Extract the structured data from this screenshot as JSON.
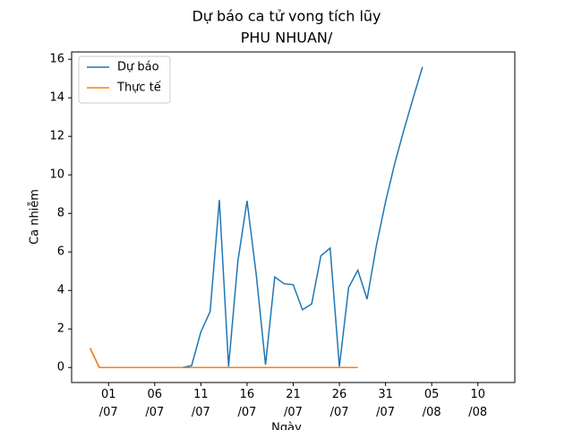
{
  "chart_data": {
    "type": "line",
    "title": "Dự báo ca tử vong tích lũy",
    "subtitle": "PHU NHUAN/",
    "x_label": "Ngày",
    "y_label": "Ca nhiễm",
    "x": [
      "29/06",
      "30/06",
      "01/07",
      "02/07",
      "03/07",
      "04/07",
      "05/07",
      "06/07",
      "07/07",
      "08/07",
      "09/07",
      "10/07",
      "11/07",
      "12/07",
      "13/07",
      "14/07",
      "15/07",
      "16/07",
      "17/07",
      "18/07",
      "19/07",
      "20/07",
      "21/07",
      "22/07",
      "23/07",
      "24/07",
      "25/07",
      "26/07",
      "27/07",
      "28/07",
      "29/07",
      "30/07",
      "31/07",
      "01/08",
      "02/08",
      "03/08",
      "04/08"
    ],
    "series": [
      {
        "name": "Dự báo",
        "color": "#1f77b4",
        "values": [
          1.0,
          0,
          0,
          0,
          0,
          0,
          0,
          0,
          0,
          0,
          0,
          0.1,
          1.85,
          2.9,
          8.7,
          0.05,
          5.5,
          8.65,
          4.8,
          0.15,
          4.7,
          4.35,
          4.3,
          3.0,
          3.3,
          5.8,
          6.2,
          0.05,
          4.15,
          5.05,
          3.55,
          6.3,
          8.6,
          10.6,
          12.35,
          14.0,
          15.6
        ]
      },
      {
        "name": "Thực tế",
        "color": "#ff7f0e",
        "values": [
          1.0,
          0,
          0,
          0,
          0,
          0,
          0,
          0,
          0,
          0,
          0,
          0,
          0,
          0,
          0,
          0,
          0,
          0,
          0,
          0,
          0,
          0,
          0,
          0,
          0,
          0,
          0,
          0,
          0,
          0,
          null,
          null,
          null,
          null,
          null,
          null,
          null
        ]
      }
    ],
    "xlim": [
      "27/06",
      "14/08"
    ],
    "xticks": [
      {
        "value": "01/07",
        "label": "01\n/07"
      },
      {
        "value": "06/07",
        "label": "06\n/07"
      },
      {
        "value": "11/07",
        "label": "11\n/07"
      },
      {
        "value": "16/07",
        "label": "16\n/07"
      },
      {
        "value": "21/07",
        "label": "21\n/07"
      },
      {
        "value": "26/07",
        "label": "26\n/07"
      },
      {
        "value": "31/07",
        "label": "31\n/07"
      },
      {
        "value": "05/08",
        "label": "05\n/08"
      },
      {
        "value": "10/08",
        "label": "10\n/08"
      }
    ],
    "ylim": [
      -0.78,
      16.38
    ],
    "yticks": [
      0,
      2,
      4,
      6,
      8,
      10,
      12,
      14,
      16
    ],
    "legend": "upper-left"
  }
}
